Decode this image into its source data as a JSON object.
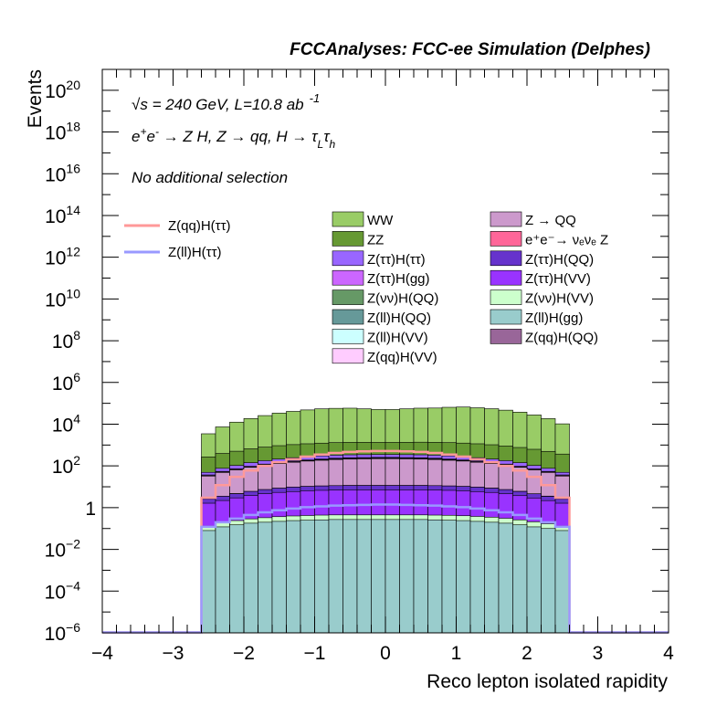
{
  "chart_data": {
    "type": "area",
    "title": "FCCAnalyses: FCC-ee Simulation (Delphes)",
    "xlabel": "Reco lepton isolated rapidity",
    "ylabel": "Events",
    "xlim": [
      -4,
      4
    ],
    "ylim": [
      1e-06,
      1e+21
    ],
    "log_y": true,
    "grid": false,
    "x_ticks": [
      "−4",
      "−3",
      "−2",
      "−1",
      "0",
      "1",
      "2",
      "3",
      "4"
    ],
    "y_ticks": [
      {
        "base": "10",
        "exp": "20"
      },
      {
        "base": "10",
        "exp": "18"
      },
      {
        "base": "10",
        "exp": "16"
      },
      {
        "base": "10",
        "exp": "14"
      },
      {
        "base": "10",
        "exp": "12"
      },
      {
        "base": "10",
        "exp": "10"
      },
      {
        "base": "10",
        "exp": "8"
      },
      {
        "base": "10",
        "exp": "6"
      },
      {
        "base": "10",
        "exp": "4"
      },
      {
        "base": "10",
        "exp": "2"
      },
      {
        "base": "1",
        "exp": ""
      },
      {
        "base": "10",
        "exp": "−2"
      },
      {
        "base": "10",
        "exp": "−4"
      },
      {
        "base": "10",
        "exp": "−6"
      }
    ],
    "annotations": {
      "energy_sqrt": "√",
      "energy_s": "s",
      "energy_rest": " = 240 GeV, L=10.8 ab",
      "energy_sup": "-1",
      "process_a": "e",
      "process_a_sup": "+",
      "process_b": "e",
      "process_b_sup": "-",
      "process_rest": " → Z H, Z  → qq, H  →  τ",
      "process_sub1": "L",
      "process_tau2": "τ",
      "process_sub2": "h",
      "selection": "No additional selection"
    },
    "bins_x": [
      -2.6,
      -2.4,
      -2.2,
      -2.0,
      -1.8,
      -1.6,
      -1.4,
      -1.2,
      -1.0,
      -0.8,
      -0.6,
      -0.4,
      -0.2,
      0.0,
      0.2,
      0.4,
      0.6,
      0.8,
      1.0,
      1.2,
      1.4,
      1.6,
      1.8,
      2.0,
      2.2,
      2.4,
      2.6
    ],
    "stack_totals": {
      "colors": [
        "#99cc66",
        "#669933",
        "#9966ff",
        "#cc66ff",
        "#669966",
        "#669999",
        "#ccffff",
        "#ffccff",
        "#cc99cc",
        "#ff6699",
        "#6633cc",
        "#9933ff",
        "#ccffcc",
        "#99cccc",
        "#996699"
      ],
      "series": [
        {
          "legend": "WW",
          "values": [
            3200.0,
            7000.0,
            12000.0,
            18000.0,
            25000.0,
            33000.0,
            40000.0,
            47000.0,
            53000.0,
            56000.0,
            57000.0,
            53000.0,
            49000.0,
            49000.0,
            53000.0,
            57000.0,
            58000.0,
            63000.0,
            65000.0,
            60000.0,
            54000.0,
            46000.0,
            37000.0,
            27000.0,
            18000.0,
            10000.0
          ]
        },
        {
          "legend": "ZZ",
          "values": [
            220,
            320,
            400,
            520,
            620,
            720,
            800,
            870,
            930,
            980,
            1010,
            1010,
            990,
            990,
            1010,
            1030,
            1030,
            1000,
            960,
            900,
            820,
            720,
            620,
            520,
            420,
            320
          ]
        },
        {
          "legend": "Z(ττ)H(ττ)",
          "values": [
            12,
            22,
            32,
            45,
            55,
            65,
            75,
            82,
            88,
            92,
            95,
            95,
            95,
            95,
            95,
            95,
            92,
            88,
            82,
            75,
            65,
            55,
            45,
            32,
            22,
            12
          ]
        },
        {
          "legend": "Z(ττ)H(gg)",
          "values": [
            3.2,
            4.5,
            6,
            8,
            10,
            12,
            14,
            15,
            16,
            17,
            17,
            17,
            17,
            17,
            17,
            17,
            17,
            16,
            15,
            14,
            12,
            10,
            8,
            6,
            4.5,
            3.2
          ]
        },
        {
          "legend": "Z(νν)H(QQ)",
          "values": [
            0.12,
            0.12,
            0.12,
            0.03,
            0.12,
            0.12,
            0.12,
            0.12,
            0.04,
            0.12,
            0.12,
            0.12,
            0.0001,
            0.12,
            0.0001,
            0.12,
            0.12,
            0.01,
            0.12,
            0.12,
            0.12,
            0.12,
            0.12,
            0.12,
            0.12,
            0.12
          ]
        },
        {
          "legend": "Z(ll)H(QQ)",
          "values": [
            0.3,
            0.35,
            0.4,
            0.45,
            0.5,
            0.55,
            0.6,
            0.6,
            0.6,
            0.6,
            0.6,
            0.6,
            0.6,
            0.6,
            0.6,
            0.6,
            0.6,
            0.6,
            0.6,
            0.55,
            0.5,
            0.45,
            0.4,
            0.35,
            0.3,
            0.3
          ]
        },
        {
          "legend": "Z(ll)H(VV)",
          "values": [
            0.3,
            0.5,
            0.8,
            1.2,
            1.8,
            2.5,
            3.5,
            4.5,
            6,
            7,
            8,
            8.5,
            9,
            9,
            8.5,
            8,
            7,
            6,
            4.5,
            3.5,
            2.5,
            1.8,
            1.2,
            0.8,
            0.5,
            0.3
          ]
        },
        {
          "legend": "Z(qq)H(VV)",
          "values": [
            0.5,
            0.8,
            1.2,
            1.8,
            2.5,
            3.5,
            4.5,
            5.5,
            6.5,
            7.5,
            8,
            8.5,
            8.5,
            8.5,
            8.5,
            8,
            7.5,
            6.5,
            5.5,
            4.5,
            3.5,
            2.5,
            1.8,
            1.2,
            0.8,
            0.5
          ]
        },
        {
          "legend": "Z → QQ",
          "values": [
            30,
            45,
            60,
            80,
            100,
            120,
            140,
            160,
            175,
            190,
            200,
            205,
            210,
            210,
            205,
            200,
            190,
            175,
            160,
            140,
            120,
            100,
            80,
            60,
            45,
            30
          ]
        },
        {
          "legend": "e⁺e⁻→ νₑνₑ Z",
          "values": [
            0,
            0,
            0.1,
            0,
            0,
            0,
            0,
            0,
            0,
            0,
            0,
            0,
            0,
            0,
            0,
            0,
            0,
            0,
            0,
            0,
            0.1,
            0,
            0.1,
            0,
            0.1,
            0
          ]
        },
        {
          "legend": "Z(ττ)H(QQ)",
          "values": [
            1,
            1.3,
            1.7,
            2.2,
            2.7,
            3.2,
            3.7,
            4,
            4.2,
            4.4,
            4.5,
            4.5,
            4.5,
            4.5,
            4.5,
            4.5,
            4.4,
            4.2,
            4,
            3.7,
            3.2,
            2.7,
            2.2,
            1.7,
            1.3,
            1
          ]
        },
        {
          "legend": "Z(ττ)H(VV)",
          "values": [
            1.5,
            2,
            2.7,
            3.5,
            4.3,
            5,
            5.5,
            6,
            6.3,
            6.5,
            6.6,
            6.6,
            6.6,
            6.6,
            6.6,
            6.6,
            6.5,
            6.3,
            6,
            5.5,
            5,
            4.3,
            3.5,
            2.7,
            2,
            1.5
          ]
        },
        {
          "legend": "Z(νν)H(VV)",
          "values": [
            0.05,
            0.07,
            0.09,
            0.11,
            0.13,
            0.15,
            0.16,
            0.17,
            0.18,
            0.18,
            0.18,
            0.18,
            0.18,
            0.18,
            0.18,
            0.18,
            0.18,
            0.18,
            0.17,
            0.16,
            0.15,
            0.13,
            0.11,
            0.09,
            0.07,
            0.05
          ]
        },
        {
          "legend": "Z(ll)H(gg)",
          "values": [
            0.08,
            0.12,
            0.15,
            0.18,
            0.2,
            0.22,
            0.24,
            0.25,
            0.26,
            0.27,
            0.27,
            0.27,
            0.27,
            0.27,
            0.27,
            0.27,
            0.26,
            0.25,
            0.24,
            0.22,
            0.2,
            0.18,
            0.15,
            0.12,
            0.1,
            0.08
          ]
        },
        {
          "legend": "Z(qq)H(QQ)",
          "values": [
            0,
            0,
            0,
            0,
            0,
            0,
            0,
            0,
            0,
            0,
            0,
            0,
            0,
            0,
            0,
            0,
            0,
            0,
            0,
            0,
            0,
            0,
            0,
            0,
            0,
            0
          ]
        }
      ]
    },
    "line_series": [
      {
        "legend": "Z(qq)H(ττ)",
        "color": "#ff9999",
        "values": [
          3,
          12,
          30,
          60,
          100,
          150,
          210,
          280,
          350,
          420,
          470,
          500,
          520,
          520,
          500,
          470,
          420,
          350,
          280,
          210,
          150,
          100,
          60,
          30,
          12,
          3
        ]
      },
      {
        "legend": "Z(ll)H(ττ)",
        "color": "#9999ff",
        "values": [
          0.12,
          0.2,
          0.3,
          0.45,
          0.6,
          0.75,
          0.9,
          1.05,
          1.15,
          1.25,
          1.3,
          1.35,
          1.4,
          1.4,
          1.35,
          1.3,
          1.25,
          1.15,
          1.05,
          0.9,
          0.75,
          0.6,
          0.45,
          0.3,
          0.2,
          0.12
        ]
      }
    ],
    "legend_left": [
      {
        "label": "Z(qq)H(ττ)",
        "color": "#ff9999"
      },
      {
        "label": "Z(ll)H(ττ)",
        "color": "#9999ff"
      }
    ],
    "legend_col1": [
      {
        "label": "WW",
        "color": "#99cc66"
      },
      {
        "label": "ZZ",
        "color": "#669933"
      },
      {
        "label": "Z(ττ)H(ττ)",
        "color": "#9966ff"
      },
      {
        "label": "Z(ττ)H(gg)",
        "color": "#cc66ff"
      },
      {
        "label": "Z(νν)H(QQ)",
        "color": "#669966"
      },
      {
        "label": "Z(ll)H(QQ)",
        "color": "#669999"
      },
      {
        "label": "Z(ll)H(VV)",
        "color": "#ccffff"
      },
      {
        "label": "Z(qq)H(VV)",
        "color": "#ffccff"
      }
    ],
    "legend_col2": [
      {
        "label": "Z → QQ",
        "color": "#cc99cc"
      },
      {
        "label": "e⁺e⁻→ νₑνₑ Z",
        "color": "#ff6699"
      },
      {
        "label": "Z(ττ)H(QQ)",
        "color": "#6633cc"
      },
      {
        "label": "Z(ττ)H(VV)",
        "color": "#9933ff"
      },
      {
        "label": "Z(νν)H(VV)",
        "color": "#ccffcc"
      },
      {
        "label": "Z(ll)H(gg)",
        "color": "#99cccc"
      },
      {
        "label": "Z(qq)H(QQ)",
        "color": "#996699"
      }
    ]
  }
}
